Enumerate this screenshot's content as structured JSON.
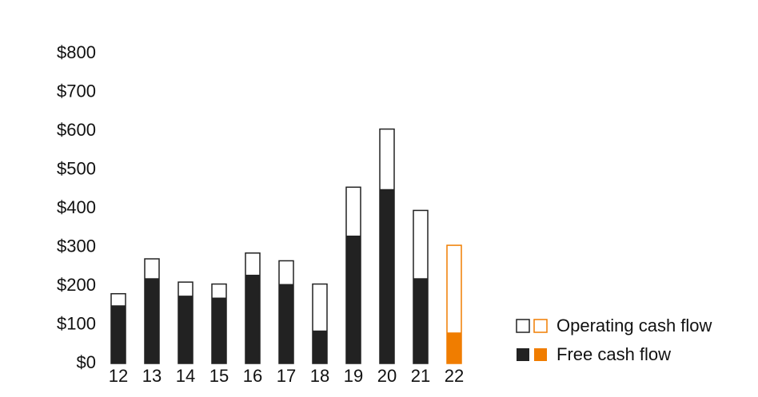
{
  "chart_data": {
    "type": "bar",
    "categories": [
      "12",
      "13",
      "14",
      "15",
      "16",
      "17",
      "18",
      "19",
      "20",
      "21",
      "22"
    ],
    "series": [
      {
        "name": "Operating cash flow",
        "style": "outline",
        "values": [
          180,
          270,
          210,
          205,
          285,
          265,
          205,
          455,
          605,
          395,
          305
        ],
        "colors": [
          "#222222",
          "#222222",
          "#222222",
          "#222222",
          "#222222",
          "#222222",
          "#222222",
          "#222222",
          "#222222",
          "#222222",
          "#f07d00"
        ]
      },
      {
        "name": "Free cash flow",
        "style": "filled",
        "values": [
          150,
          220,
          175,
          170,
          229,
          205,
          85,
          330,
          450,
          220,
          80
        ],
        "colors": [
          "#222222",
          "#222222",
          "#222222",
          "#222222",
          "#222222",
          "#222222",
          "#222222",
          "#222222",
          "#222222",
          "#222222",
          "#f07d00"
        ]
      }
    ],
    "ylim": [
      0,
      800
    ],
    "yticks": [
      {
        "value": 0,
        "label": "$0"
      },
      {
        "value": 100,
        "label": "$100"
      },
      {
        "value": 200,
        "label": "$200"
      },
      {
        "value": 300,
        "label": "$300"
      },
      {
        "value": 400,
        "label": "$400"
      },
      {
        "value": 500,
        "label": "$500"
      },
      {
        "value": 600,
        "label": "$600"
      },
      {
        "value": 700,
        "label": "$700"
      },
      {
        "value": 800,
        "label": "$800"
      }
    ],
    "grid": false,
    "legend": "bottom-right"
  }
}
